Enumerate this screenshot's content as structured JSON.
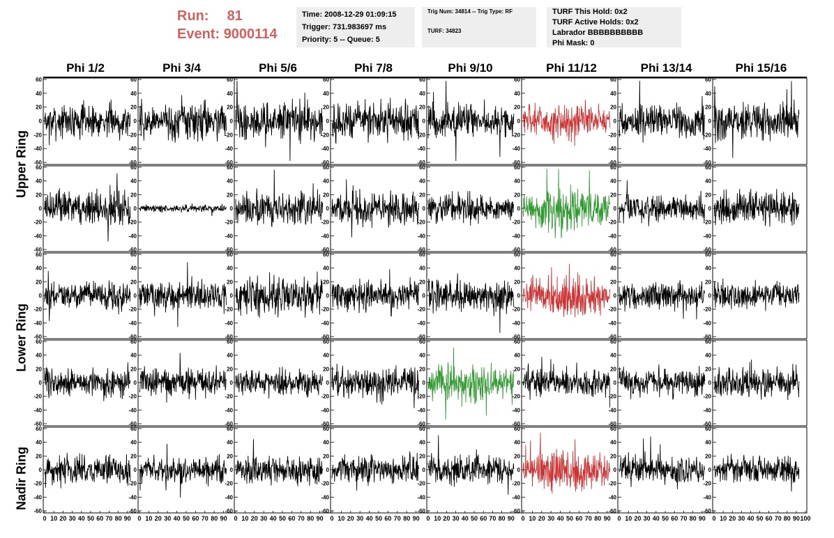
{
  "header": {
    "run_label": "Run:",
    "run_value": "81",
    "event_label": "Event:",
    "event_value": "9000114",
    "time_line": "Time: 2008-12-29 01:09:15",
    "trigger_line": "Trigger: 731.983697 ms",
    "priority_line": "Priority: 5 -- Queue: 5",
    "trig_line": "Trig Num: 34814 -- Trig Type: RF",
    "turf_line": "TURF: 34823",
    "turf_hold_line": "TURF This Hold: 0x2",
    "turf_active_line": "TURF Active Holds: 0x2",
    "labrador_line": "Labrador BBBBBBBBBB",
    "phi_mask_line": "Phi Mask: 0"
  },
  "columns": [
    "Phi 1/2",
    "Phi 3/4",
    "Phi 5/6",
    "Phi 7/8",
    "Phi 9/10",
    "Phi 11/12",
    "Phi 13/14",
    "Phi 15/16"
  ],
  "row_labels": [
    "Upper Ring",
    "Lower Ring",
    "Nadir Ring"
  ],
  "colors": {
    "normal": "#000000",
    "red": "#cc3333",
    "green": "#339933"
  },
  "chart_data": {
    "type": "line",
    "ylim": [
      -60,
      60
    ],
    "xlim": [
      0,
      100
    ],
    "y_ticks": [
      -60,
      -40,
      -20,
      0,
      20,
      40,
      60
    ],
    "y_tick_labels": [
      "-60",
      "-40",
      "-20",
      "0",
      "20",
      "40",
      "60"
    ],
    "x_ticks": [
      0,
      10,
      20,
      30,
      40,
      50,
      60,
      70,
      80,
      90,
      100
    ],
    "x_tick_labels": [
      "0",
      "10",
      "20",
      "30",
      "40",
      "50",
      "60",
      "70",
      "80",
      "90",
      "100"
    ],
    "grid_rows": 5,
    "grid_cols": 8,
    "panel_styles": [
      [
        "normal",
        "normal",
        "normal",
        "normal",
        "normal",
        "red",
        "normal",
        "normal"
      ],
      [
        "normal",
        "normal",
        "normal",
        "normal",
        "normal",
        "green",
        "normal",
        "normal"
      ],
      [
        "normal",
        "normal",
        "normal",
        "normal",
        "normal",
        "red",
        "normal",
        "normal"
      ],
      [
        "normal",
        "normal",
        "normal",
        "normal",
        "green",
        "normal",
        "normal",
        "normal"
      ],
      [
        "normal",
        "normal",
        "normal",
        "normal",
        "normal",
        "red",
        "normal",
        "normal"
      ]
    ],
    "panel_amplitude": [
      [
        14,
        16,
        16,
        16,
        16,
        14,
        14,
        16
      ],
      [
        14,
        3,
        14,
        14,
        12,
        16,
        12,
        14
      ],
      [
        12,
        12,
        16,
        14,
        14,
        16,
        12,
        12
      ],
      [
        12,
        12,
        12,
        14,
        14,
        12,
        12,
        12
      ],
      [
        12,
        12,
        12,
        12,
        12,
        14,
        12,
        12
      ]
    ]
  }
}
